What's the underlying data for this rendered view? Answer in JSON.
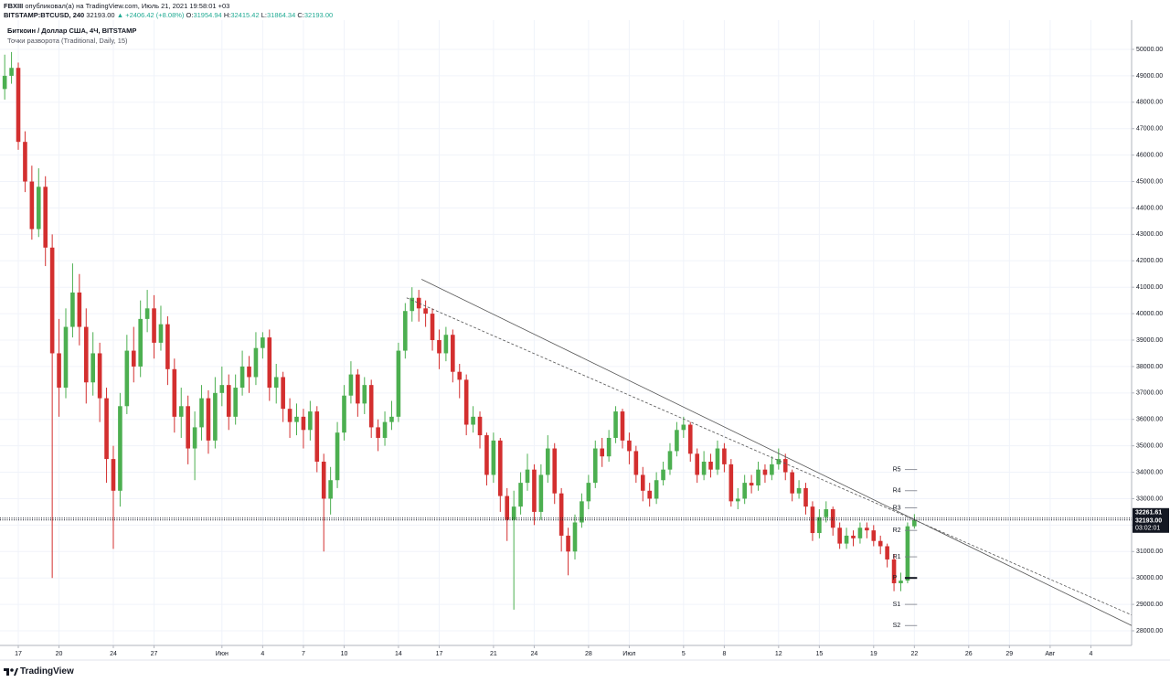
{
  "header": {
    "author": "FBXIII",
    "line1": "опубликовал(а) на TradingView.com, Июль 21, 2021 19:58:01 +03",
    "symbol": "BITSTAMP:BTCUSD, 240",
    "last": "32193.00",
    "change": "▲ +2406.42 (+8.08%)",
    "ohlc": [
      {
        "label": "O:",
        "value": "31954.94"
      },
      {
        "label": "H:",
        "value": "32415.42"
      },
      {
        "label": "L:",
        "value": "31864.34"
      },
      {
        "label": "C:",
        "value": "32193.00"
      }
    ]
  },
  "footer": {
    "brand": "TradingView"
  },
  "chart_data": {
    "type": "candlestick",
    "title": "Биткоин / Доллар США, 4Ч, BITSTAMP",
    "subtitle": "Точки разворота (Traditional, Daily, 15)",
    "up_color": "#4caf50",
    "down_color": "#d32f2f",
    "grid": true,
    "xlim": [
      -1.3468,
      82
    ],
    "ylim": [
      27447,
      51107
    ],
    "xticks": [
      {
        "value": 0,
        "label": "17"
      },
      {
        "value": 3,
        "label": "20"
      },
      {
        "value": 7,
        "label": "24"
      },
      {
        "value": 10,
        "label": "27"
      },
      {
        "value": 15,
        "label": "Июн"
      },
      {
        "value": 18,
        "label": "4"
      },
      {
        "value": 21,
        "label": "7"
      },
      {
        "value": 24,
        "label": "10"
      },
      {
        "value": 28,
        "label": "14"
      },
      {
        "value": 31,
        "label": "17"
      },
      {
        "value": 35,
        "label": "21"
      },
      {
        "value": 38,
        "label": "24"
      },
      {
        "value": 42,
        "label": "28"
      },
      {
        "value": 45,
        "label": "Июл"
      },
      {
        "value": 49,
        "label": "5"
      },
      {
        "value": 52,
        "label": "8"
      },
      {
        "value": 56,
        "label": "12"
      },
      {
        "value": 59,
        "label": "15"
      },
      {
        "value": 63,
        "label": "19"
      },
      {
        "value": 66,
        "label": "22"
      },
      {
        "value": 70,
        "label": "26"
      },
      {
        "value": 73,
        "label": "29"
      },
      {
        "value": 76,
        "label": "Авг"
      },
      {
        "value": 79,
        "label": "4"
      }
    ],
    "yticks": [
      {
        "value": 28000,
        "label": "28000.00"
      },
      {
        "value": 29000,
        "label": "29000.00"
      },
      {
        "value": 30000,
        "label": "30000.00"
      },
      {
        "value": 31000,
        "label": "31000.00"
      },
      {
        "value": 32000,
        "label": "32000.00"
      },
      {
        "value": 33000,
        "label": "33000.00"
      },
      {
        "value": 34000,
        "label": "34000.00"
      },
      {
        "value": 35000,
        "label": "35000.00"
      },
      {
        "value": 36000,
        "label": "36000.00"
      },
      {
        "value": 37000,
        "label": "37000.00"
      },
      {
        "value": 38000,
        "label": "38000.00"
      },
      {
        "value": 39000,
        "label": "39000.00"
      },
      {
        "value": 40000,
        "label": "40000.00"
      },
      {
        "value": 41000,
        "label": "41000.00"
      },
      {
        "value": 42000,
        "label": "42000.00"
      },
      {
        "value": 43000,
        "label": "43000.00"
      },
      {
        "value": 44000,
        "label": "44000.00"
      },
      {
        "value": 45000,
        "label": "45000.00"
      },
      {
        "value": 46000,
        "label": "46000.00"
      },
      {
        "value": 47000,
        "label": "47000.00"
      },
      {
        "value": 48000,
        "label": "48000.00"
      },
      {
        "value": 49000,
        "label": "49000.00"
      },
      {
        "value": 50000,
        "label": "50000.00"
      }
    ],
    "x": [
      -1,
      -0.5,
      0,
      0.5,
      1,
      1.5,
      2,
      2.5,
      3,
      3.5,
      4,
      4.5,
      5,
      5.5,
      6,
      6.5,
      7,
      7.5,
      8,
      8.5,
      9,
      9.5,
      10,
      10.5,
      11,
      11.5,
      12,
      12.5,
      13,
      13.5,
      14,
      14.5,
      15,
      15.5,
      16,
      16.5,
      17,
      17.5,
      18,
      18.5,
      19,
      19.5,
      20,
      20.5,
      21,
      21.5,
      22,
      22.5,
      23,
      23.5,
      24,
      24.5,
      25,
      25.5,
      26,
      26.5,
      27,
      27.5,
      28,
      28.5,
      29,
      29.5,
      30,
      30.5,
      31,
      31.5,
      32,
      32.5,
      33,
      33.5,
      34,
      34.5,
      35,
      35.5,
      36,
      36.5,
      37,
      37.5,
      38,
      38.5,
      39,
      39.5,
      40,
      40.5,
      41,
      41.5,
      42,
      42.5,
      43,
      43.5,
      44,
      44.5,
      45,
      45.5,
      46,
      46.5,
      47,
      47.5,
      48,
      48.5,
      49,
      49.5,
      50,
      50.5,
      51,
      51.5,
      52,
      52.5,
      53,
      53.5,
      54,
      54.5,
      55,
      55.5,
      56,
      56.5,
      57,
      57.5,
      58,
      58.5,
      59,
      59.5,
      60,
      60.5,
      61,
      61.5,
      62,
      62.5,
      63,
      63.5,
      64,
      64.5,
      65,
      65.5,
      66
    ],
    "open": [
      48500,
      49000,
      49300,
      46500,
      45000,
      43200,
      44800,
      42500,
      38500,
      37200,
      39500,
      40800,
      39500,
      37400,
      38500,
      36800,
      34500,
      33300,
      36500,
      38600,
      38000,
      39800,
      40200,
      38900,
      39600,
      37900,
      36100,
      36500,
      34900,
      35700,
      36800,
      35200,
      37000,
      37300,
      36100,
      37200,
      38000,
      37600,
      38700,
      39100,
      37200,
      37600,
      36400,
      35900,
      36100,
      35600,
      36300,
      34400,
      33000,
      33700,
      35500,
      36900,
      37700,
      36600,
      37300,
      35700,
      35300,
      35900,
      36100,
      38600,
      40100,
      40600,
      40200,
      40000,
      39000,
      38500,
      39200,
      37800,
      37500,
      35800,
      36100,
      35400,
      33900,
      35200,
      33100,
      32200,
      32700,
      33600,
      34100,
      32500,
      33900,
      34900,
      33200,
      31600,
      31000,
      32100,
      32900,
      33600,
      34900,
      34600,
      35300,
      36300,
      35200,
      34800,
      33900,
      33300,
      33000,
      33700,
      34100,
      34800,
      35600,
      35800,
      34700,
      33900,
      34400,
      34100,
      34900,
      34300,
      32900,
      33000,
      33600,
      33500,
      34100,
      33900,
      34300,
      34500,
      34000,
      33200,
      33400,
      32700,
      31700,
      32300,
      32600,
      31900,
      31300,
      31600,
      31500,
      31900,
      31800,
      31400,
      31200,
      30700,
      29800,
      29900,
      31954.94
    ],
    "high": [
      49800,
      49900,
      49500,
      46900,
      45600,
      45500,
      45200,
      43000,
      39800,
      40200,
      41900,
      41500,
      40200,
      39300,
      38900,
      37200,
      35000,
      37000,
      39200,
      39500,
      40500,
      40900,
      40700,
      40300,
      39900,
      38300,
      37200,
      36900,
      36300,
      37300,
      37100,
      37600,
      38000,
      37700,
      37700,
      38600,
      38400,
      39300,
      39300,
      39400,
      38100,
      37800,
      36800,
      36600,
      36400,
      36700,
      36500,
      34700,
      34200,
      35900,
      37300,
      38200,
      37900,
      37600,
      37500,
      36000,
      36300,
      36700,
      38900,
      40400,
      41000,
      40900,
      40500,
      40200,
      39400,
      39500,
      39400,
      38100,
      37700,
      36500,
      36300,
      35500,
      35500,
      35300,
      33400,
      33300,
      34000,
      34700,
      34300,
      34300,
      35400,
      35100,
      33400,
      31900,
      32400,
      33200,
      33900,
      35200,
      35300,
      35600,
      36500,
      36400,
      35500,
      35000,
      34200,
      33600,
      34000,
      34400,
      35100,
      35900,
      36100,
      35900,
      34900,
      34800,
      34700,
      35200,
      35100,
      34500,
      33400,
      33900,
      33900,
      34400,
      34300,
      34600,
      34900,
      34700,
      34100,
      33700,
      33600,
      32900,
      32600,
      32900,
      32700,
      32100,
      31900,
      31800,
      32100,
      32100,
      32000,
      31600,
      31300,
      30900,
      30200,
      32100,
      32415.42
    ],
    "low": [
      48100,
      48700,
      46200,
      44600,
      42800,
      42900,
      41800,
      30000,
      36100,
      36800,
      39100,
      38800,
      36600,
      36900,
      35900,
      33600,
      31100,
      32700,
      36200,
      37400,
      37600,
      39300,
      38300,
      38600,
      37300,
      35500,
      35300,
      34300,
      33700,
      35200,
      34700,
      34900,
      36500,
      35600,
      35800,
      36900,
      37000,
      37300,
      38300,
      36700,
      36600,
      35900,
      35300,
      35400,
      34900,
      35200,
      34000,
      31000,
      32400,
      33400,
      35200,
      36600,
      36100,
      36200,
      35300,
      34800,
      35000,
      35600,
      35900,
      38300,
      39700,
      39700,
      39500,
      38600,
      37900,
      38200,
      37400,
      36800,
      35400,
      35500,
      34900,
      33500,
      33600,
      32500,
      31400,
      28800,
      32400,
      33300,
      32000,
      32200,
      33600,
      32800,
      31000,
      30100,
      30700,
      31900,
      32600,
      33400,
      34200,
      34400,
      35100,
      34900,
      34300,
      33600,
      32900,
      32700,
      32800,
      33500,
      33900,
      34600,
      35300,
      34400,
      33600,
      33700,
      33800,
      33900,
      34000,
      32700,
      32600,
      32800,
      33200,
      33300,
      33600,
      33700,
      34100,
      33700,
      32900,
      33000,
      32400,
      31400,
      31500,
      32100,
      31600,
      31100,
      31100,
      31200,
      31300,
      31500,
      31200,
      30900,
      30400,
      29500,
      29500,
      29800,
      31864.34
    ],
    "close": [
      49000,
      49300,
      46500,
      45000,
      43200,
      44800,
      42500,
      38500,
      37200,
      39500,
      40800,
      39500,
      37400,
      38500,
      36800,
      34500,
      33300,
      36500,
      38600,
      38000,
      39800,
      40200,
      38900,
      39600,
      37900,
      36100,
      36500,
      34900,
      35700,
      36800,
      35200,
      37000,
      37300,
      36100,
      37200,
      38000,
      37600,
      38700,
      39100,
      37200,
      37600,
      36400,
      35900,
      36100,
      35600,
      36300,
      34400,
      33000,
      33700,
      35500,
      36900,
      37700,
      36600,
      37300,
      35700,
      35300,
      35900,
      36100,
      38600,
      40100,
      40600,
      40200,
      40000,
      39000,
      38500,
      39200,
      37800,
      37500,
      35800,
      36100,
      35400,
      33900,
      35200,
      33100,
      32200,
      32700,
      33600,
      34100,
      32500,
      33900,
      34900,
      33200,
      31600,
      31000,
      32100,
      32900,
      33600,
      34900,
      34600,
      35300,
      36300,
      35200,
      34800,
      33900,
      33300,
      33000,
      33700,
      34100,
      34800,
      35600,
      35800,
      34700,
      33900,
      34400,
      34100,
      34900,
      34300,
      32900,
      33000,
      33600,
      33500,
      34100,
      33900,
      34300,
      34500,
      34000,
      33200,
      33400,
      32700,
      31700,
      32300,
      32600,
      31900,
      31300,
      31600,
      31500,
      31900,
      31800,
      31400,
      31200,
      30700,
      29800,
      29900,
      31955,
      32193
    ],
    "trendlines": [
      {
        "style": "solid",
        "x": [
          29.7,
          82
        ],
        "y": [
          41300,
          28200
        ]
      },
      {
        "style": "dashed",
        "x": [
          28.6,
          82
        ],
        "y": [
          40600,
          28600
        ]
      }
    ],
    "pivots": {
      "names": [
        "R5",
        "R4",
        "R3",
        "R2",
        "R1",
        "P",
        "S1",
        "S2"
      ],
      "values": [
        34100,
        33300,
        32650,
        31800,
        30800,
        30000,
        29000,
        28200
      ]
    },
    "price_lines": [
      {
        "value": 32261.61,
        "label": "32261.61"
      },
      {
        "value": 32193,
        "label": "32193.00",
        "countdown": "03:02:01"
      }
    ]
  }
}
